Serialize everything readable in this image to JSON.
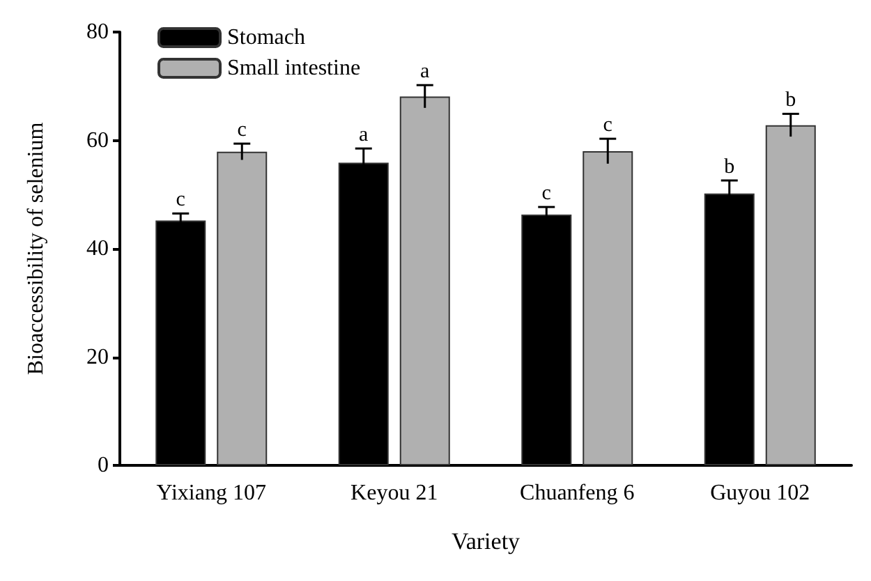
{
  "chart_data": {
    "type": "bar",
    "xlabel": "Variety",
    "ylabel": "Bioaccessibility of selenium",
    "categories": [
      "Yixiang 107",
      "Keyou 21",
      "Chuanfeng 6",
      "Guyou 102"
    ],
    "series": [
      {
        "name": "Stomach",
        "color": "#000000",
        "values": [
          45.2,
          55.9,
          46.3,
          50.2
        ],
        "errors": [
          1.3,
          2.6,
          1.4,
          2.4
        ],
        "value_labels": [
          "c",
          "a",
          "c",
          "b"
        ]
      },
      {
        "name": "Small intestine",
        "color": "#b0b0b0",
        "values": [
          57.9,
          68.1,
          58.0,
          62.8
        ],
        "errors": [
          1.5,
          2.1,
          2.3,
          2.1
        ],
        "value_labels": [
          "c",
          "a",
          "c",
          "b"
        ]
      }
    ],
    "ylim": [
      0,
      80
    ],
    "yticks": [
      0,
      20,
      40,
      60,
      80
    ],
    "grid": false,
    "legend": "top left"
  }
}
